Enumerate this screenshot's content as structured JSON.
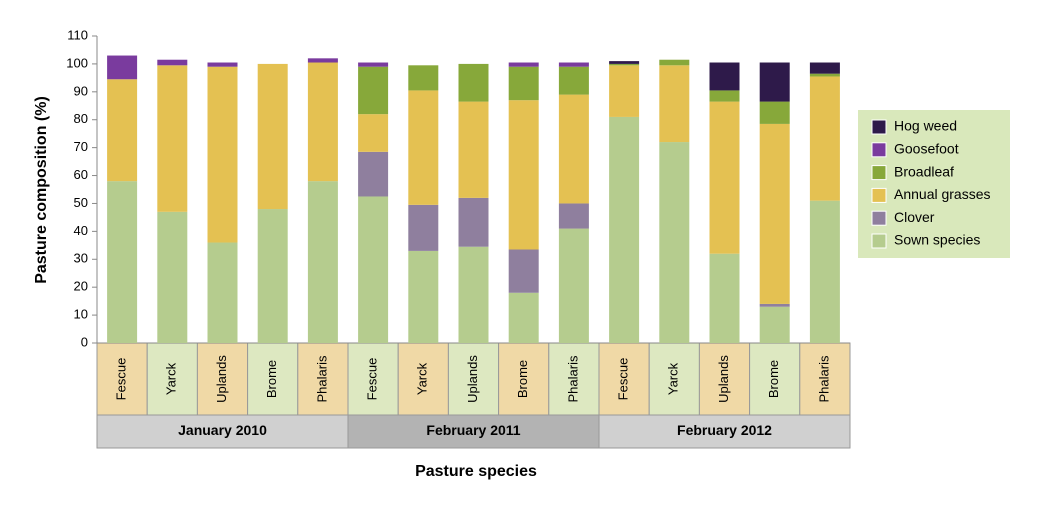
{
  "chart_data": {
    "type": "stacked-bar",
    "x_label": "Pasture species",
    "y_label": "Pasture composition (%)",
    "categories": [
      "Fescue",
      "Yarck",
      "Uplands",
      "Brome",
      "Phalaris",
      "Fescue",
      "Yarck",
      "Uplands",
      "Brome",
      "Phalaris",
      "Fescue",
      "Yarck",
      "Uplands",
      "Brome",
      "Phalaris"
    ],
    "groups": [
      "January 2010",
      "February 2011",
      "February 2012"
    ],
    "ylim": [
      0,
      110
    ],
    "yticks": [
      0,
      10,
      20,
      30,
      40,
      50,
      60,
      70,
      80,
      90,
      100,
      110
    ],
    "grid": false,
    "legend": "right",
    "series": [
      {
        "name": "Sown species",
        "color": "#b5cc8e",
        "values": [
          58,
          47,
          36,
          48,
          58,
          52.5,
          33,
          34.5,
          18,
          41,
          81,
          72,
          32,
          13,
          51
        ]
      },
      {
        "name": "Clover",
        "color": "#8f7f9e",
        "values": [
          0,
          0,
          0,
          0,
          0,
          16,
          16.5,
          17.5,
          15.5,
          9,
          0,
          0,
          0,
          1,
          0
        ]
      },
      {
        "name": "Annual grasses",
        "color": "#e4c152",
        "values": [
          36.5,
          52.5,
          63,
          52,
          42.5,
          13.5,
          41,
          34.5,
          53.5,
          39,
          18.5,
          27.5,
          54.5,
          64.5,
          44.5
        ]
      },
      {
        "name": "Broadleaf",
        "color": "#87a83a",
        "values": [
          0,
          0,
          0,
          0,
          0,
          17,
          9,
          13.5,
          12,
          10,
          0.5,
          2,
          4,
          8,
          1
        ]
      },
      {
        "name": "Goosefoot",
        "color": "#7a3b9e",
        "values": [
          8.5,
          2,
          1.5,
          0,
          1.5,
          1.5,
          0,
          0,
          1.5,
          1.5,
          0,
          0,
          0,
          0,
          0
        ]
      },
      {
        "name": "Hog weed",
        "color": "#2e1a4a",
        "values": [
          0,
          0,
          0,
          0,
          0,
          0,
          0,
          0,
          0,
          0,
          1,
          0,
          10,
          14,
          4
        ]
      }
    ]
  }
}
